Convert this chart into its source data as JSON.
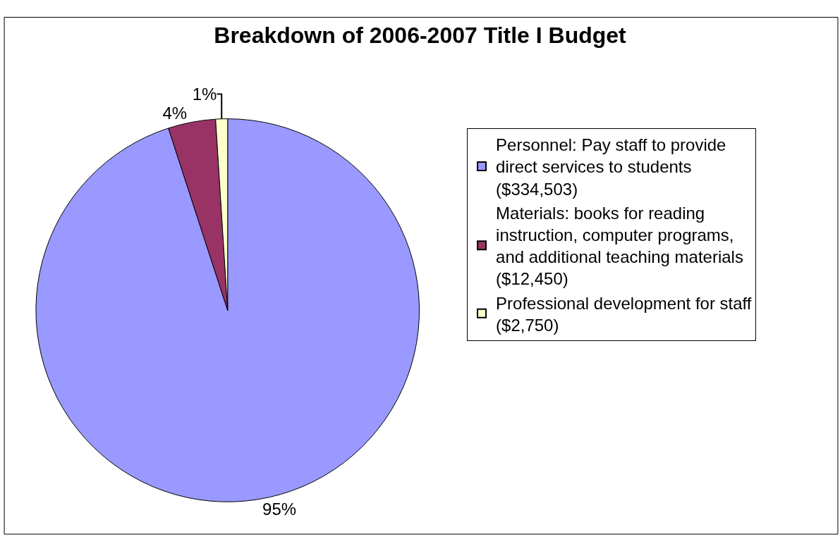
{
  "chart_data": {
    "type": "pie",
    "title": "Breakdown of 2006-2007 Title I Budget",
    "categories": [
      "Personnel: Pay staff to provide direct services to students ($334,503)",
      "Materials: books for reading instruction, computer programs, and additional teaching materials ($12,450)",
      "Professional development for staff ($2,750)"
    ],
    "values": [
      95,
      4,
      1
    ],
    "colors": [
      "#9999ff",
      "#993366",
      "#ffffcc"
    ],
    "value_labels": [
      "95%",
      "4%",
      "1%"
    ],
    "legend": "right"
  }
}
